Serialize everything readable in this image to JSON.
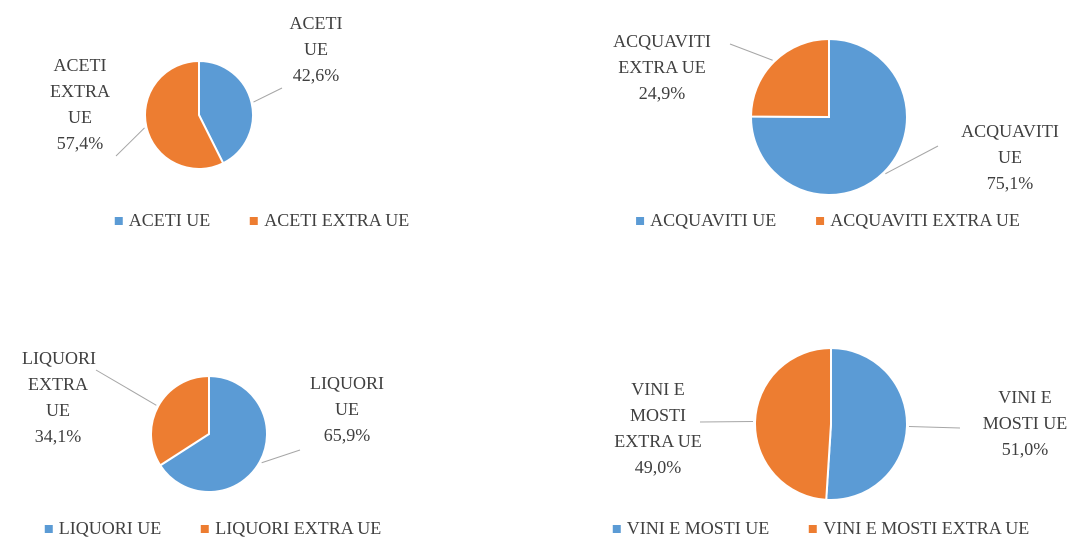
{
  "chart_data": [
    {
      "type": "pie",
      "categories": [
        "ACETI UE",
        "ACETI EXTRA UE"
      ],
      "values": [
        42.6,
        57.4
      ],
      "value_labels": [
        "42,6%",
        "57,4%"
      ],
      "colors": [
        "#5b9bd5",
        "#ed7d31"
      ]
    },
    {
      "type": "pie",
      "categories": [
        "ACQUAVITI UE",
        "ACQUAVITI EXTRA UE"
      ],
      "values": [
        75.1,
        24.9
      ],
      "value_labels": [
        "75,1%",
        "24,9%"
      ],
      "colors": [
        "#5b9bd5",
        "#ed7d31"
      ]
    },
    {
      "type": "pie",
      "categories": [
        "LIQUORI UE",
        "LIQUORI EXTRA UE"
      ],
      "values": [
        65.9,
        34.1
      ],
      "value_labels": [
        "65,9%",
        "34,1%"
      ],
      "colors": [
        "#5b9bd5",
        "#ed7d31"
      ]
    },
    {
      "type": "pie",
      "categories": [
        "VINI E MOSTI UE",
        "VINI E MOSTI EXTRA UE"
      ],
      "values": [
        51.0,
        49.0
      ],
      "value_labels": [
        "51,0%",
        "49,0%"
      ],
      "colors": [
        "#5b9bd5",
        "#ed7d31"
      ]
    }
  ]
}
